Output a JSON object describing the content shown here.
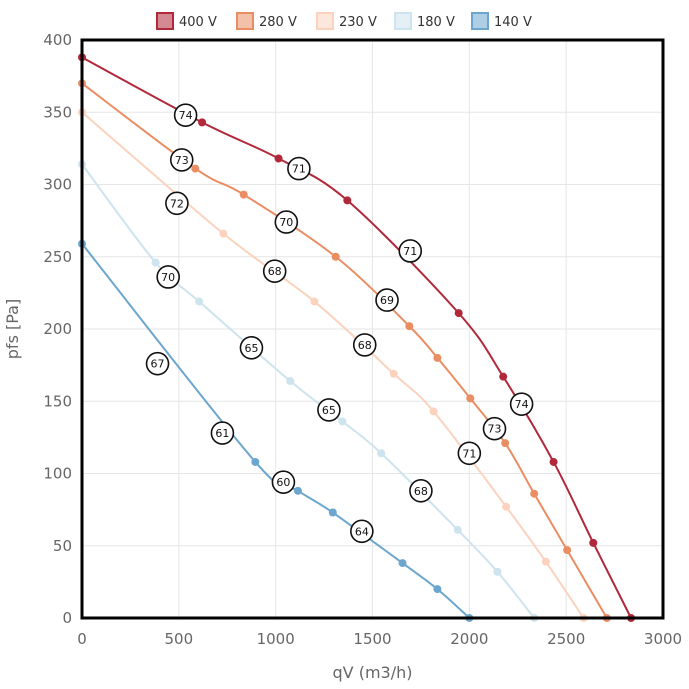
{
  "chart_data": {
    "type": "line",
    "xlabel": "qV (m3/h)",
    "ylabel": "pfs [Pa]",
    "xlim": [
      0,
      3000
    ],
    "ylim": [
      0,
      400
    ],
    "xticks": [
      0,
      500,
      1000,
      1500,
      2000,
      2500,
      3000
    ],
    "yticks": [
      0,
      50,
      100,
      150,
      200,
      250,
      300,
      350,
      400
    ],
    "grid": true,
    "legend_position": "top",
    "series": [
      {
        "name": "400 V",
        "color": "#b0283a",
        "points": [
          [
            0,
            388
          ],
          [
            620,
            343
          ],
          [
            1015,
            318
          ],
          [
            1370,
            289
          ],
          [
            1945,
            211
          ],
          [
            2175,
            167
          ],
          [
            2435,
            108
          ],
          [
            2640,
            52
          ],
          [
            2835,
            0
          ]
        ]
      },
      {
        "name": "280 V",
        "color": "#ea8d62",
        "points": [
          [
            0,
            370
          ],
          [
            585,
            311
          ],
          [
            835,
            293
          ],
          [
            1310,
            250
          ],
          [
            1690,
            202
          ],
          [
            1835,
            180
          ],
          [
            2005,
            152
          ],
          [
            2185,
            121
          ],
          [
            2335,
            86
          ],
          [
            2505,
            47
          ],
          [
            2710,
            0
          ]
        ]
      },
      {
        "name": "230 V",
        "color": "#fbd2bd",
        "points": [
          [
            0,
            350
          ],
          [
            730,
            266
          ],
          [
            1200,
            219
          ],
          [
            1610,
            169
          ],
          [
            1815,
            143
          ],
          [
            2190,
            77
          ],
          [
            2395,
            39
          ],
          [
            2590,
            0
          ]
        ]
      },
      {
        "name": "180 V",
        "color": "#cde3ee",
        "points": [
          [
            0,
            314
          ],
          [
            380,
            246
          ],
          [
            605,
            219
          ],
          [
            1075,
            164
          ],
          [
            1345,
            136
          ],
          [
            1545,
            114
          ],
          [
            1940,
            61
          ],
          [
            2145,
            32
          ],
          [
            2335,
            0
          ]
        ]
      },
      {
        "name": "140 V",
        "color": "#6ba6cf",
        "points": [
          [
            0,
            259
          ],
          [
            895,
            108
          ],
          [
            1115,
            88
          ],
          [
            1295,
            73
          ],
          [
            1655,
            38
          ],
          [
            1835,
            20
          ],
          [
            2000,
            0
          ]
        ]
      }
    ],
    "annotations": [
      {
        "label": "74",
        "x": 535,
        "y": 348
      },
      {
        "label": "71",
        "x": 1120,
        "y": 311
      },
      {
        "label": "71",
        "x": 1695,
        "y": 254
      },
      {
        "label": "74",
        "x": 2270,
        "y": 148
      },
      {
        "label": "73",
        "x": 515,
        "y": 317
      },
      {
        "label": "70",
        "x": 1055,
        "y": 274
      },
      {
        "label": "69",
        "x": 1575,
        "y": 220
      },
      {
        "label": "73",
        "x": 2130,
        "y": 131
      },
      {
        "label": "72",
        "x": 490,
        "y": 287
      },
      {
        "label": "68",
        "x": 995,
        "y": 240
      },
      {
        "label": "68",
        "x": 1460,
        "y": 189
      },
      {
        "label": "71",
        "x": 2000,
        "y": 114
      },
      {
        "label": "70",
        "x": 445,
        "y": 236
      },
      {
        "label": "65",
        "x": 875,
        "y": 187
      },
      {
        "label": "65",
        "x": 1275,
        "y": 144
      },
      {
        "label": "68",
        "x": 1750,
        "y": 88
      },
      {
        "label": "67",
        "x": 390,
        "y": 176
      },
      {
        "label": "61",
        "x": 725,
        "y": 128
      },
      {
        "label": "60",
        "x": 1040,
        "y": 94
      },
      {
        "label": "64",
        "x": 1445,
        "y": 60
      }
    ]
  }
}
